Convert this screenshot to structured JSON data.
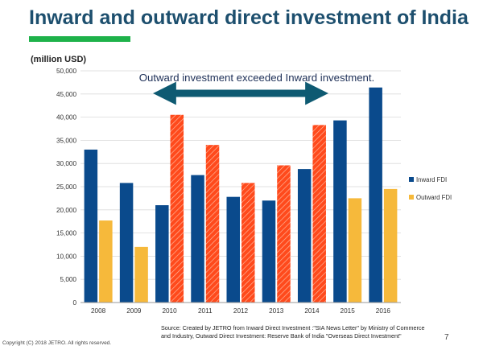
{
  "page": {
    "title": "Inward and outward direct investment of India",
    "unit_label": "(million USD)",
    "source_line1": "Source: Created by JETRO from Inward Direct Investment :\"SIA News Letter\" by Ministry of Commerce",
    "source_line2": "and Industry, Outward Direct Investment: Reserve Bank of India \"Overseas Direct Investment\"",
    "page_number": "7",
    "copyright": "Copyright (C) 2018 JETRO. All rights reserved."
  },
  "chart_data": {
    "type": "bar",
    "title": "Inward and outward direct investment of India",
    "ylabel": "(million USD)",
    "xlabel": "",
    "categories": [
      "2008",
      "2009",
      "2010",
      "2011",
      "2012",
      "2013",
      "2014",
      "2015",
      "2016"
    ],
    "ylim": [
      0,
      50000
    ],
    "yticks": [
      0,
      5000,
      10000,
      15000,
      20000,
      25000,
      30000,
      35000,
      40000,
      45000,
      50000
    ],
    "ytick_labels": [
      "0",
      "5,000",
      "10,000",
      "15,000",
      "20,000",
      "25,000",
      "30,000",
      "35,000",
      "40,000",
      "45,000",
      "50,000"
    ],
    "grid": true,
    "legend": "right",
    "series": [
      {
        "name": "Inward FDI",
        "color": "#0a4a8c",
        "values": [
          33000,
          25800,
          21000,
          27500,
          22800,
          22000,
          28800,
          39300,
          46400
        ]
      },
      {
        "name": "Outward FDI",
        "color": "#f6b93b",
        "highlight_color": "#ff4a1c",
        "values": [
          17700,
          12000,
          40500,
          34000,
          25800,
          29600,
          38300,
          22500,
          24500
        ]
      }
    ],
    "highlighted_categories": [
      "2010",
      "2011",
      "2012",
      "2013",
      "2014"
    ],
    "annotation": {
      "text": "Outward investment exceeded Inward investment.",
      "arrow_color": "#0e5a72",
      "from_category": "2010",
      "to_category": "2014"
    }
  }
}
